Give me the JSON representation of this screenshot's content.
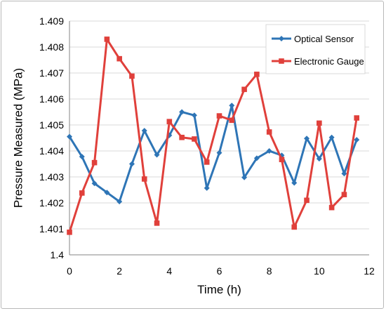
{
  "chart_data": {
    "type": "line",
    "title": "",
    "xlabel": "Time (h)",
    "ylabel": "Pressure Measured  (MPa)",
    "xlim": [
      0,
      12
    ],
    "ylim": [
      1.4,
      1.409
    ],
    "xticks": [
      "0",
      "2",
      "4",
      "6",
      "8",
      "10",
      "12"
    ],
    "yticks": [
      "1.4",
      "1.401",
      "1.402",
      "1.403",
      "1.404",
      "1.405",
      "1.406",
      "1.407",
      "1.408",
      "1.409"
    ],
    "grid": "horizontal",
    "legend_position": "top-right",
    "x": [
      0,
      0.5,
      1,
      1.5,
      2,
      2.5,
      3,
      3.5,
      4,
      4.5,
      5,
      5.5,
      6,
      6.5,
      7,
      7.5,
      8,
      8.5,
      9,
      9.5,
      10,
      10.5,
      11,
      11.5
    ],
    "series": [
      {
        "name": "Optical Sensor",
        "color": "#2e75b6",
        "marker": "diamond",
        "values": [
          1.40455,
          1.40378,
          1.40275,
          1.4024,
          1.40205,
          1.4035,
          1.40478,
          1.40385,
          1.4046,
          1.4055,
          1.40537,
          1.40257,
          1.40393,
          1.40575,
          1.40298,
          1.40372,
          1.404,
          1.40383,
          1.40277,
          1.40448,
          1.4037,
          1.40452,
          1.40313,
          1.40443
        ]
      },
      {
        "name": "Electronic Gauge",
        "color": "#e0403b",
        "marker": "square",
        "values": [
          1.40087,
          1.40238,
          1.40355,
          1.4083,
          1.40755,
          1.40688,
          1.40292,
          1.40122,
          1.40513,
          1.40452,
          1.40446,
          1.40357,
          1.40535,
          1.40518,
          1.40637,
          1.40695,
          1.40473,
          1.40367,
          1.40107,
          1.4021,
          1.40507,
          1.40182,
          1.40232,
          1.40527
        ]
      }
    ]
  }
}
